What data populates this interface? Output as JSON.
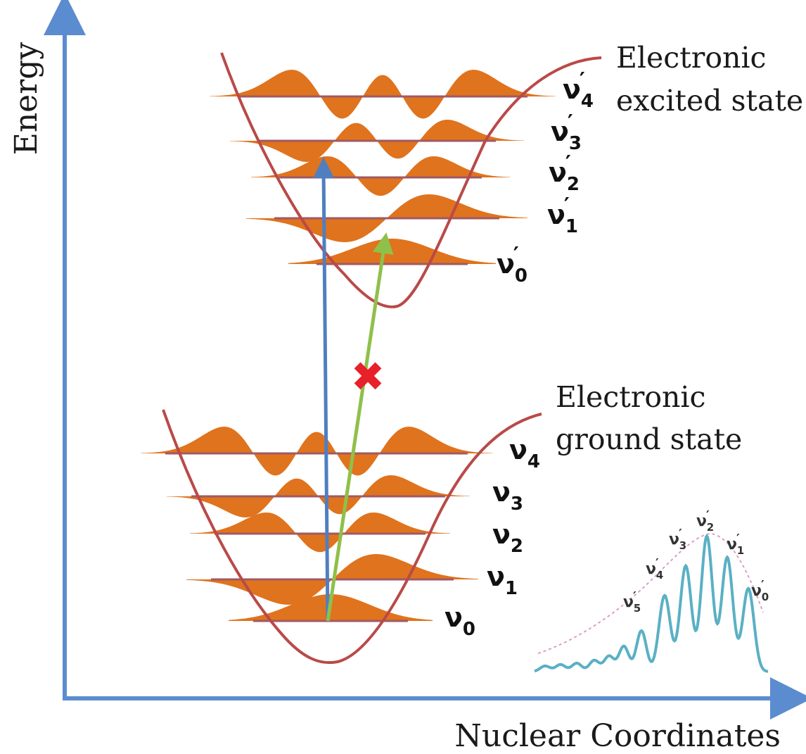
{
  "axes": {
    "y_label": "Energy",
    "x_label": "Nuclear Coordinates"
  },
  "states": {
    "excited": {
      "line1": "Electronic",
      "line2": "excited state"
    },
    "ground": {
      "line1": "Electronic",
      "line2": "ground state"
    }
  },
  "excited_levels": [
    {
      "symbol": "ν",
      "prime": "′",
      "sub": "4"
    },
    {
      "symbol": "ν",
      "prime": "′",
      "sub": "3"
    },
    {
      "symbol": "ν",
      "prime": "′",
      "sub": "2"
    },
    {
      "symbol": "ν",
      "prime": "′",
      "sub": "1"
    },
    {
      "symbol": "ν",
      "prime": "′",
      "sub": "0"
    }
  ],
  "ground_levels": [
    {
      "symbol": "ν",
      "sub": "4"
    },
    {
      "symbol": "ν",
      "sub": "3"
    },
    {
      "symbol": "ν",
      "sub": "2"
    },
    {
      "symbol": "ν",
      "sub": "1"
    },
    {
      "symbol": "ν",
      "sub": "0"
    }
  ],
  "spectrum_labels": [
    {
      "symbol": "ν",
      "prime": "′",
      "sub": "5"
    },
    {
      "symbol": "ν",
      "prime": "′",
      "sub": "4"
    },
    {
      "symbol": "ν",
      "prime": "′",
      "sub": "3"
    },
    {
      "symbol": "ν",
      "prime": "′",
      "sub": "2"
    },
    {
      "symbol": "ν",
      "prime": "′",
      "sub": "1"
    },
    {
      "symbol": "ν",
      "prime": "′",
      "sub": "0"
    }
  ],
  "forbidden_marker": "✖",
  "colors": {
    "axis": "#5b8ccf",
    "potential_curve": "#b94a48",
    "level_line": "#a05a62",
    "wavefunction": "#e0731d",
    "vertical_transition": "#4f7fc0",
    "slanted_transition": "#8fc04a",
    "forbidden_marker": "#e8202a",
    "spectrum": "#5ab0c4",
    "spectrum_envelope": "#d9a0c8"
  }
}
